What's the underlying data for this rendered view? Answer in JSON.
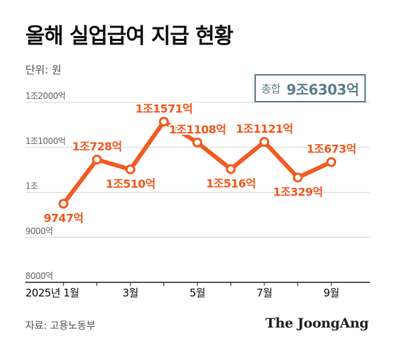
{
  "header": {
    "title": "올해 실업급여 지급 현황",
    "unit": "단위: 원"
  },
  "total": {
    "label": "총합",
    "value": "9조6303억"
  },
  "colors": {
    "line": "#f25b22",
    "label": "#f25b22",
    "accent_box": "#5e7f8f",
    "grid": "#d5d5d5"
  },
  "chart_data": {
    "type": "line",
    "x": [
      1,
      2,
      3,
      4,
      5,
      6,
      7,
      8,
      9
    ],
    "x_tick_labels": [
      "2025년 1월",
      "3월",
      "5월",
      "7월",
      "9월"
    ],
    "x_tick_positions": [
      1,
      3,
      5,
      7,
      9
    ],
    "y_unit": "억원",
    "ylim": [
      8000,
      12000
    ],
    "y_tick_values": [
      8000,
      9000,
      10000,
      11000,
      12000
    ],
    "y_tick_labels": [
      "8000억",
      "9000억",
      "1조",
      "1조1000억",
      "1조2000억"
    ],
    "series": [
      {
        "values": [
          9747,
          10728,
          10510,
          11571,
          11108,
          10516,
          11121,
          10329,
          10673
        ],
        "labels": [
          "9747억",
          "1조728억",
          "1조510억",
          "1조1571억",
          "1조1108억",
          "1조516억",
          "1조1121억",
          "1조329억",
          "1조673억"
        ]
      }
    ],
    "grid": "horizontal"
  },
  "footer": {
    "source": "자료: 고용노동부",
    "logo": "The JoongAng"
  }
}
